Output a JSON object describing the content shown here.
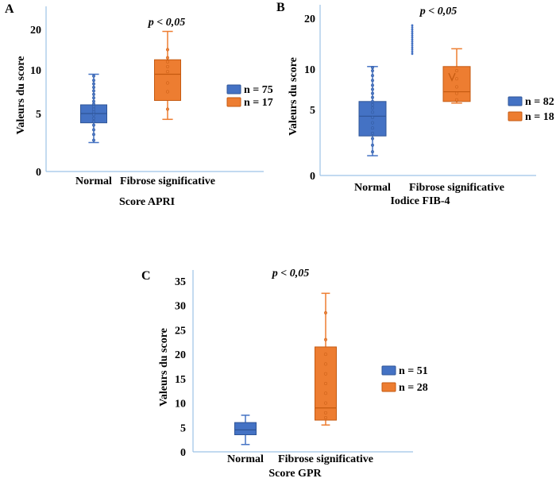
{
  "colors": {
    "normal": "#4472C4",
    "normal_edge": "#2F5597",
    "fibrose": "#ED7D31",
    "fibrose_edge": "#C55A11",
    "axis": "#9DC3E6"
  },
  "chart_data": [
    {
      "type": "box",
      "panel_label": "A",
      "annotation": "p < 0,05",
      "xlabel": "Score APRI",
      "ylabel": "Valeurs du score",
      "categories": [
        "Normal",
        "Fibrose significative"
      ],
      "yticks": [
        {
          "label": "0",
          "value": 0
        },
        {
          "label": "5",
          "value": 5
        },
        {
          "label": "10",
          "value": 10
        },
        {
          "label": "20",
          "value": 20
        }
      ],
      "ylim": [
        0,
        25
      ],
      "legend": [
        "n = 75",
        "n = 17"
      ],
      "series": [
        {
          "group": "Normal",
          "whisker_low": 2.5,
          "q1": 4.2,
          "median": 5.0,
          "q3": 6.0,
          "whisker_high": 9.5,
          "points": [
            2.7,
            3.2,
            3.6,
            4.0,
            4.3,
            4.6,
            4.9,
            5.2,
            5.5,
            5.8,
            6.1,
            6.4,
            6.8,
            7.2,
            7.6,
            8.0,
            8.4,
            8.8,
            9.3
          ]
        },
        {
          "group": "Fibrose significative",
          "whisker_low": 4.5,
          "q1": 6.5,
          "median": 9.5,
          "q3": 12.5,
          "whisker_high": 19.5,
          "points": [
            5.5,
            7.5,
            8.5,
            9.8,
            10.8,
            12.0,
            13.0,
            15.0
          ]
        }
      ]
    },
    {
      "type": "box",
      "panel_label": "B",
      "annotation": "p < 0,05",
      "xlabel": "Iodice FIB-4",
      "ylabel": "Valeurs du score",
      "categories": [
        "Normal",
        "Fibrose significative"
      ],
      "yticks": [
        {
          "label": "0",
          "value": 0
        },
        {
          "label": "5",
          "value": 5
        },
        {
          "label": "10",
          "value": 10
        },
        {
          "label": "20",
          "value": 20
        }
      ],
      "ylim": [
        0,
        23
      ],
      "legend": [
        "n = 82",
        "n = 18"
      ],
      "series": [
        {
          "group": "Normal",
          "whisker_low": 1.5,
          "q1": 3.0,
          "median": 4.5,
          "q3": 6.0,
          "whisker_high": 10.5,
          "points": [
            1.8,
            2.3,
            2.8,
            3.2,
            3.6,
            4.0,
            4.4,
            4.8,
            5.2,
            5.6,
            6.0,
            6.5,
            7.0,
            7.5,
            8.0,
            8.6,
            9.2,
            9.8,
            10.3
          ],
          "outliers": [
            13.0,
            13.4,
            13.8,
            14.2,
            14.6,
            15.0,
            15.4,
            15.8,
            16.2,
            16.6,
            17.0,
            17.4,
            17.8,
            18.2,
            18.6
          ]
        },
        {
          "group": "Fibrose significative",
          "whisker_low": 5.8,
          "q1": 6.0,
          "median": 7.2,
          "q3": 10.5,
          "whisker_high": 14.0,
          "points": [
            6.2,
            7.0,
            7.8,
            8.8,
            9.8
          ]
        }
      ]
    },
    {
      "type": "box",
      "panel_label": "C",
      "annotation": "p < 0,05",
      "xlabel": "Score GPR",
      "ylabel": "Valeurs du score",
      "categories": [
        "Normal",
        "Fibrose significative"
      ],
      "yticks": [
        {
          "label": "0",
          "value": 0
        },
        {
          "label": "5",
          "value": 5
        },
        {
          "label": "10",
          "value": 10
        },
        {
          "label": "15",
          "value": 15
        },
        {
          "label": "20",
          "value": 20
        },
        {
          "label": "25",
          "value": 25
        },
        {
          "label": "30",
          "value": 30
        },
        {
          "label": "35",
          "value": 35
        }
      ],
      "ylim": [
        0,
        35
      ],
      "legend": [
        "n = 51",
        "n = 28"
      ],
      "series": [
        {
          "group": "Normal",
          "whisker_low": 1.5,
          "q1": 3.5,
          "median": 4.5,
          "q3": 6.0,
          "whisker_high": 7.5,
          "points": []
        },
        {
          "group": "Fibrose significative",
          "whisker_low": 5.5,
          "q1": 6.5,
          "median": 9.0,
          "q3": 21.5,
          "whisker_high": 32.5,
          "points": [
            7.0,
            8.0,
            10.0,
            12.0,
            14.0,
            16.0,
            18.0,
            20.0,
            23.0,
            28.5
          ]
        }
      ]
    }
  ]
}
